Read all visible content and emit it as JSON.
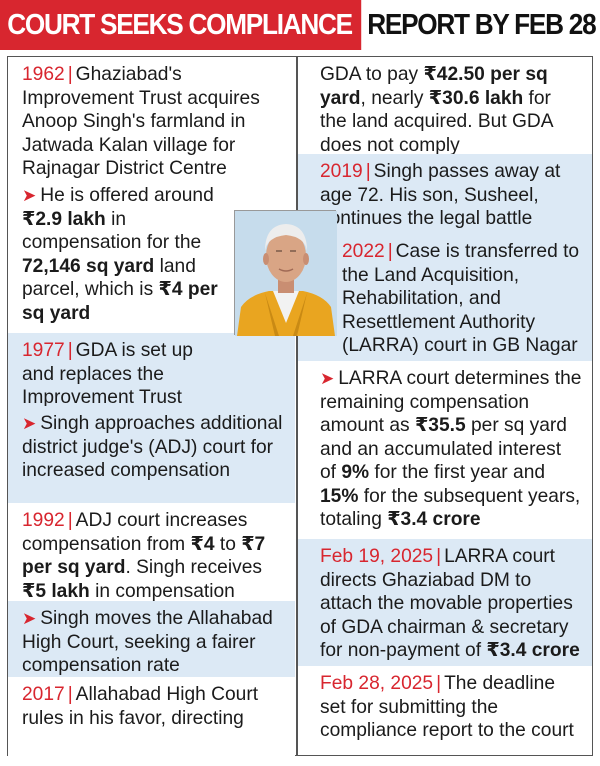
{
  "headline": {
    "part1": "COURT SEEKS COMPLIANCE",
    "part2": "REPORT BY FEB 28"
  },
  "colors": {
    "accent": "#d8262f",
    "shade": "#dce9f5"
  },
  "left": {
    "e1962": {
      "year": "1962",
      "text": "Ghaziabad's Improvement Trust acquires Anoop Singh's farmland in Jatwada Kalan village for Rajnagar District Centre"
    },
    "e1962b": {
      "t1": "He is offered around ",
      "b1": "₹2.9 lakh",
      "t2": " in compensation for the ",
      "b2": "72,146 sq yard",
      "t3": " land parcel, which is ",
      "b3": "₹4 per sq yard"
    },
    "e1977": {
      "year": "1977",
      "text": "GDA is set up and replaces the Improvement Trust"
    },
    "e1977b": {
      "text": "Singh approaches additional district judge's (ADJ) court for increased compensation"
    },
    "e1992": {
      "year": "1992",
      "t1": "ADJ court increases compensation from ",
      "b1": "₹4",
      "t2": " to ",
      "b2": "₹7 per sq yard",
      "t3": ". Singh receives ",
      "b3": "₹5 lakh",
      "t4": " in compensation"
    },
    "e1992b": {
      "text": "Singh moves the Allahabad High Court, seeking a fairer compensation rate"
    },
    "e2017": {
      "year": "2017",
      "text": "Allahabad High Court rules in his favor, directing"
    }
  },
  "right": {
    "e2017cont": {
      "t1": "GDA to pay ",
      "b1": "₹42.50 per sq yard",
      "t2": ", nearly ",
      "b2": "₹30.6 lakh",
      "t3": " for the land acquired. But GDA does not comply"
    },
    "e2019": {
      "year": "2019",
      "text": "Singh passes away at age 72. His son, Susheel, continues the legal battle"
    },
    "e2022": {
      "year": "2022",
      "text": "Case is transferred to the Land Acquisition, Rehabilitation, and Resettlement Authority (LARRA) court in GB Nagar"
    },
    "e2022b": {
      "t1": "LARRA court determines the remaining compensation amount as ",
      "b1": "₹35.5",
      "t2": " per sq yard and an accumulated interest of ",
      "b2": "9%",
      "t3": " for the first year and ",
      "b3": "15%",
      "t4": " for the subsequent years, totaling ",
      "b4": "₹3.4 crore"
    },
    "e2025a": {
      "year": "Feb 19, 2025",
      "t1": "LARRA court directs Ghaziabad DM to attach the movable properties of GDA chairman & secretary for non-payment of ",
      "b1": "₹3.4 crore"
    },
    "e2025b": {
      "year": "Feb 28, 2025",
      "text": "The deadline set for submitting the compliance report to the court"
    }
  }
}
